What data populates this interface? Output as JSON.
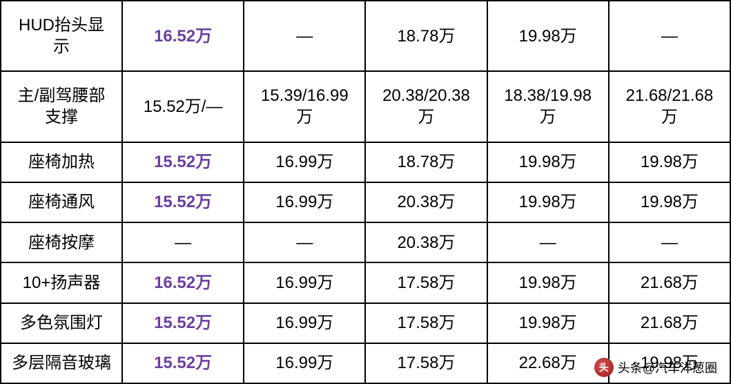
{
  "table": {
    "border_color": "#000000",
    "border_width": 2,
    "background_color": "#ffffff",
    "text_color": "#000000",
    "highlight_color": "#6b3fa0",
    "font_size": 24,
    "column_count": 6,
    "rows": [
      {
        "label": "HUD抬头显\n示",
        "cells": [
          {
            "text": "16.52万",
            "highlight": true
          },
          {
            "text": "—",
            "highlight": false
          },
          {
            "text": "18.78万",
            "highlight": false
          },
          {
            "text": "19.98万",
            "highlight": false
          },
          {
            "text": "—",
            "highlight": false
          }
        ]
      },
      {
        "label": "主/副驾腰部\n支撑",
        "cells": [
          {
            "text": "15.52万/—",
            "highlight": false
          },
          {
            "text": "15.39/16.99\n万",
            "highlight": false
          },
          {
            "text": "20.38/20.38\n万",
            "highlight": false
          },
          {
            "text": "18.38/19.98\n万",
            "highlight": false
          },
          {
            "text": "21.68/21.68\n万",
            "highlight": false
          }
        ]
      },
      {
        "label": "座椅加热",
        "cells": [
          {
            "text": "15.52万",
            "highlight": true
          },
          {
            "text": "16.99万",
            "highlight": false
          },
          {
            "text": "18.78万",
            "highlight": false
          },
          {
            "text": "19.98万",
            "highlight": false
          },
          {
            "text": "19.98万",
            "highlight": false
          }
        ]
      },
      {
        "label": "座椅通风",
        "cells": [
          {
            "text": "15.52万",
            "highlight": true
          },
          {
            "text": "16.99万",
            "highlight": false
          },
          {
            "text": "20.38万",
            "highlight": false
          },
          {
            "text": "19.98万",
            "highlight": false
          },
          {
            "text": "19.98万",
            "highlight": false
          }
        ]
      },
      {
        "label": "座椅按摩",
        "cells": [
          {
            "text": "—",
            "highlight": false
          },
          {
            "text": "—",
            "highlight": false
          },
          {
            "text": "20.38万",
            "highlight": false
          },
          {
            "text": "—",
            "highlight": false
          },
          {
            "text": "—",
            "highlight": false
          }
        ]
      },
      {
        "label": "10+扬声器",
        "cells": [
          {
            "text": "16.52万",
            "highlight": true
          },
          {
            "text": "16.99万",
            "highlight": false
          },
          {
            "text": "17.58万",
            "highlight": false
          },
          {
            "text": "19.98万",
            "highlight": false
          },
          {
            "text": "21.68万",
            "highlight": false
          }
        ]
      },
      {
        "label": "多色氛围灯",
        "cells": [
          {
            "text": "15.52万",
            "highlight": true
          },
          {
            "text": "16.99万",
            "highlight": false
          },
          {
            "text": "17.58万",
            "highlight": false
          },
          {
            "text": "19.98万",
            "highlight": false
          },
          {
            "text": "21.68万",
            "highlight": false
          }
        ]
      },
      {
        "label": "多层隔音玻璃",
        "cells": [
          {
            "text": "15.52万",
            "highlight": true
          },
          {
            "text": "16.99万",
            "highlight": false
          },
          {
            "text": "17.58万",
            "highlight": false
          },
          {
            "text": "22.68万",
            "highlight": false
          },
          {
            "text": "19.98万",
            "highlight": false
          }
        ]
      }
    ]
  },
  "watermark": {
    "icon_glyph": "头",
    "text": "头条@汽车洋葱圈",
    "icon_bg": "#b82e2e",
    "icon_fg": "#ffffff"
  }
}
